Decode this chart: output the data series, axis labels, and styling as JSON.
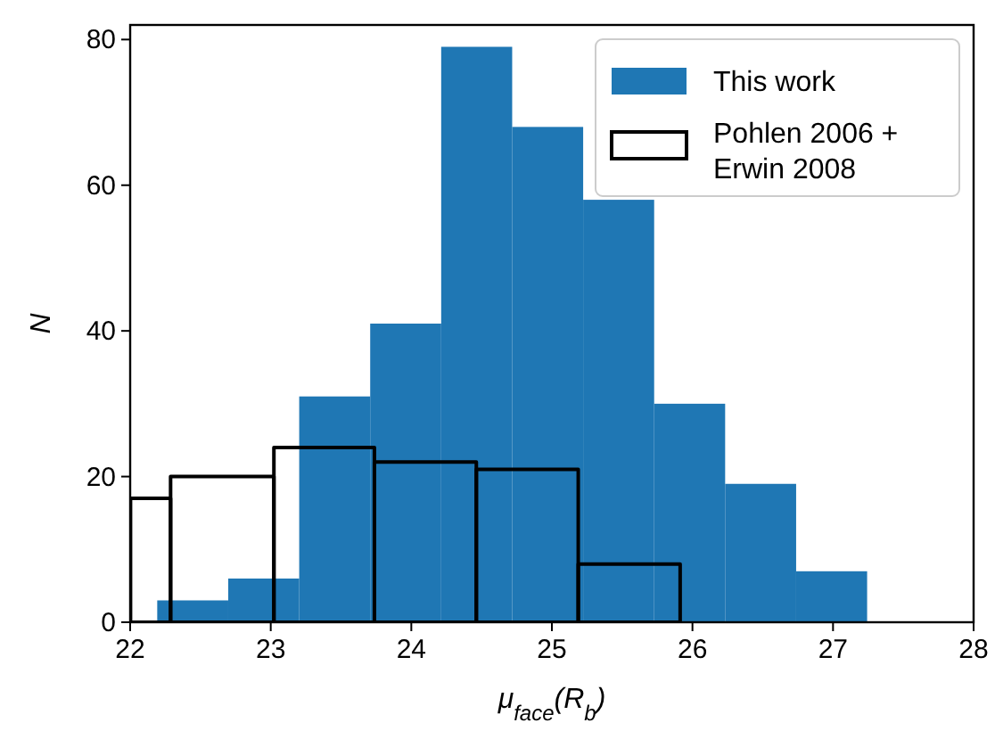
{
  "chart_data": {
    "type": "bar",
    "xlabel": "μ$_{face}$(R$_{b}$)",
    "ylabel": "N",
    "xlim": [
      22,
      28
    ],
    "xticks": [
      22,
      23,
      24,
      25,
      26,
      27,
      28
    ],
    "ylim": [
      0,
      82
    ],
    "yticks": [
      0,
      20,
      40,
      60,
      80
    ],
    "legend": "top right",
    "series": [
      {
        "name": "This work",
        "color": "#1f77b4",
        "x": [
          22.445,
          22.95,
          23.455,
          23.96,
          24.465,
          24.97,
          25.475,
          25.98,
          26.485,
          26.99
        ],
        "values": [
          3,
          6,
          31,
          41,
          79,
          68,
          58,
          30,
          19,
          7
        ]
      },
      {
        "name": "Pohlen 2006 +\nErwin 2008",
        "line_style": "solid",
        "color": "#000000",
        "x": [
          22.145,
          22.655,
          23.38,
          24.1,
          24.825,
          25.55
        ],
        "values": [
          17,
          20,
          24,
          22,
          21,
          8
        ]
      }
    ]
  }
}
